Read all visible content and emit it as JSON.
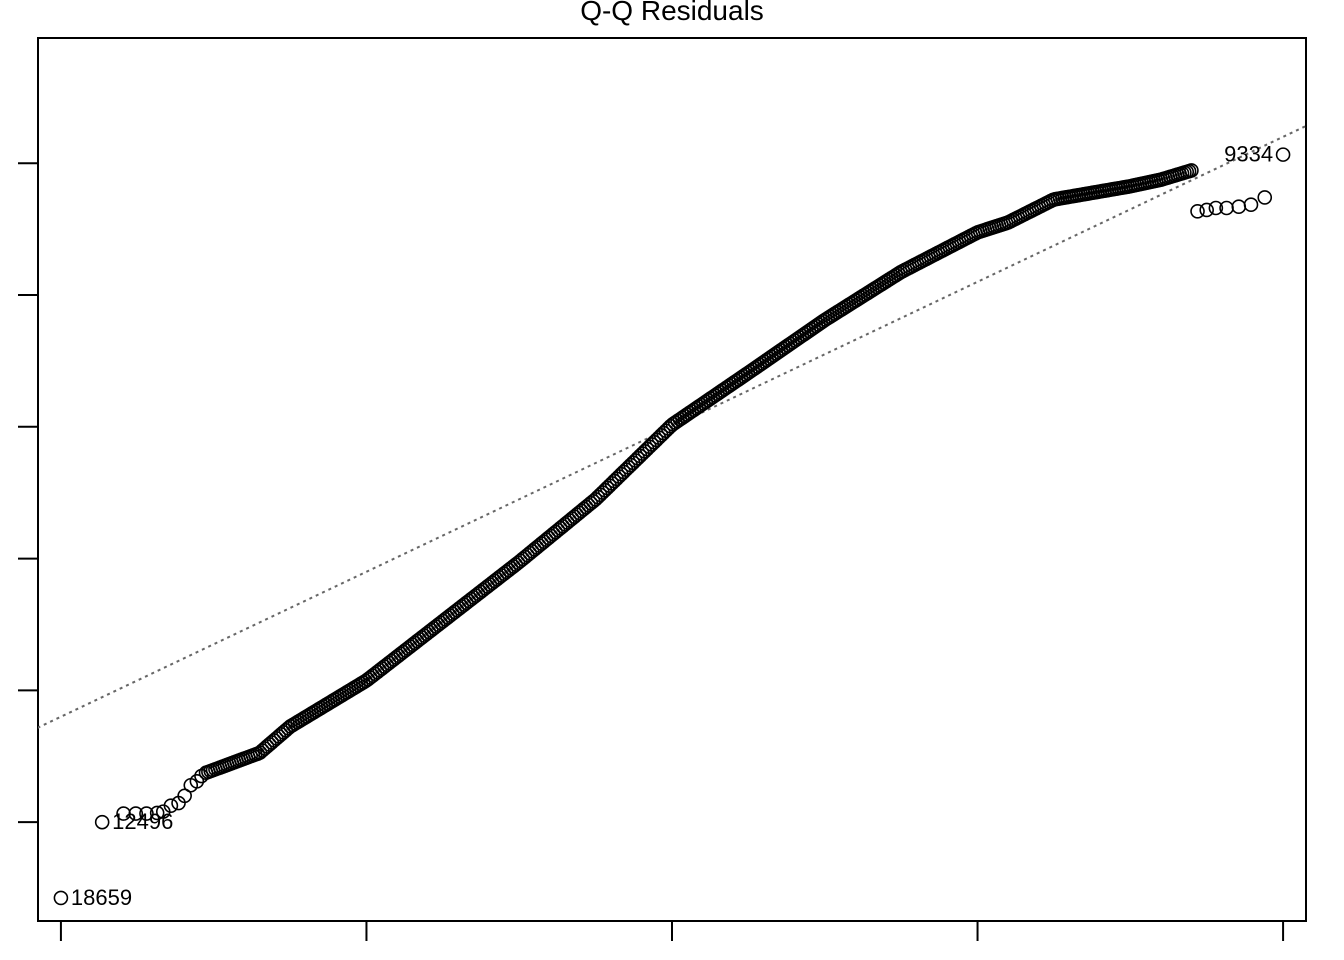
{
  "chart_data": {
    "type": "scatter",
    "title": "Q-Q Residuals",
    "xlabel": "",
    "ylabel": "",
    "xlim": [
      -4.15,
      4.15
    ],
    "ylim": [
      -7.5,
      5.9
    ],
    "x_ticks": [
      -4,
      -2,
      0,
      2,
      4
    ],
    "y_ticks": [
      -6,
      -4,
      -2,
      0,
      2,
      4
    ],
    "tick_labels_shown": false,
    "reference_line": {
      "style": "dotted",
      "color": "#666666",
      "intercept": 0,
      "slope": 1.1
    },
    "tail_points": [
      {
        "x": -4.0,
        "y": -7.15,
        "label": "18659"
      },
      {
        "x": -3.73,
        "y": -6.0,
        "label": "12496"
      },
      {
        "x": -3.59,
        "y": -5.87
      },
      {
        "x": -3.51,
        "y": -5.87
      },
      {
        "x": -3.44,
        "y": -5.87
      },
      {
        "x": -3.37,
        "y": -5.86
      },
      {
        "x": -3.33,
        "y": -5.84
      },
      {
        "x": -3.28,
        "y": -5.75
      },
      {
        "x": -3.23,
        "y": -5.71
      },
      {
        "x": -3.19,
        "y": -5.6
      },
      {
        "x": -3.15,
        "y": -5.44
      },
      {
        "x": -3.11,
        "y": -5.38
      },
      {
        "x": -3.08,
        "y": -5.3
      },
      {
        "x": 3.44,
        "y": 3.27
      },
      {
        "x": 3.5,
        "y": 3.29
      },
      {
        "x": 3.56,
        "y": 3.32
      },
      {
        "x": 3.63,
        "y": 3.32
      },
      {
        "x": 3.71,
        "y": 3.34
      },
      {
        "x": 3.79,
        "y": 3.37
      },
      {
        "x": 3.88,
        "y": 3.48
      },
      {
        "x": 4.0,
        "y": 4.13,
        "label": "9334"
      }
    ],
    "bulk": {
      "x_range": [
        -3.05,
        3.4
      ],
      "curve": [
        [
          -3.05,
          -5.25
        ],
        [
          -2.7,
          -4.95
        ],
        [
          -2.5,
          -4.55
        ],
        [
          -2.0,
          -3.85
        ],
        [
          -1.5,
          -2.95
        ],
        [
          -1.0,
          -2.05
        ],
        [
          -0.5,
          -1.1
        ],
        [
          0.0,
          0.03
        ],
        [
          0.5,
          0.82
        ],
        [
          1.0,
          1.62
        ],
        [
          1.5,
          2.35
        ],
        [
          2.0,
          2.95
        ],
        [
          2.2,
          3.1
        ],
        [
          2.5,
          3.45
        ],
        [
          3.0,
          3.65
        ],
        [
          3.2,
          3.75
        ],
        [
          3.4,
          3.89
        ]
      ]
    }
  }
}
